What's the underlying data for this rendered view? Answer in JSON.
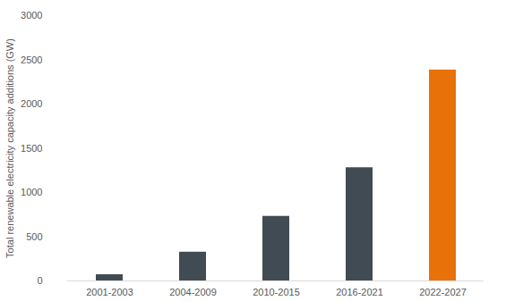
{
  "chart_data": {
    "type": "bar",
    "y_label": "Total renewable electricity capacity additions (GW)",
    "categories": [
      "2001-2003",
      "2004-2009",
      "2010-2015",
      "2016-2021",
      "2022-2027"
    ],
    "values": [
      70,
      325,
      730,
      1280,
      2385
    ],
    "colors": [
      "#414b53",
      "#414b53",
      "#414b53",
      "#414b53",
      "#e8710a"
    ],
    "ylim": [
      0,
      3000
    ],
    "yticks": [
      0,
      500,
      1000,
      1500,
      2000,
      2500,
      3000
    ],
    "grid": false
  }
}
